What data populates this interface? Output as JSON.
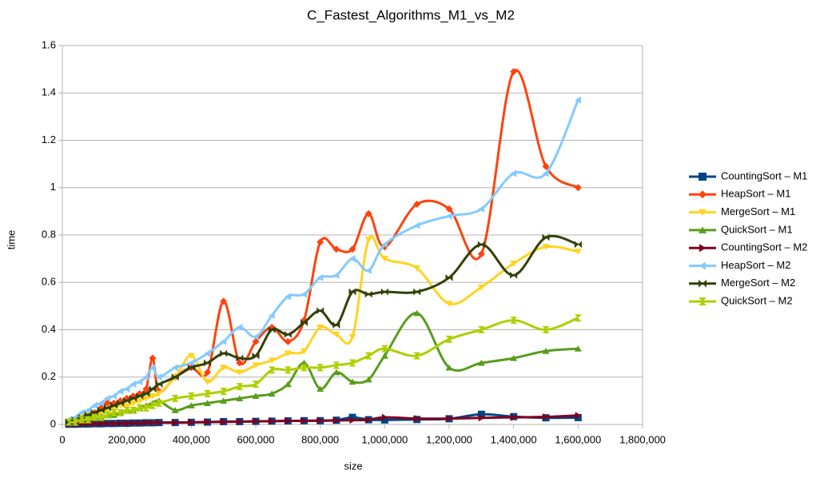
{
  "chart_data": {
    "type": "line",
    "title": "C_Fastest_Algorithms_M1_vs_M2",
    "x_label": "size",
    "y_label": "time",
    "smooth": true,
    "grid": true,
    "legend": "right",
    "x": [
      20000,
      40000,
      60000,
      80000,
      100000,
      120000,
      140000,
      160000,
      180000,
      200000,
      220000,
      240000,
      260000,
      280000,
      300000,
      350000,
      400000,
      450000,
      500000,
      550000,
      600000,
      650000,
      700000,
      750000,
      800000,
      850000,
      900000,
      950000,
      1000000,
      1100000,
      1200000,
      1300000,
      1400000,
      1500000,
      1600000
    ],
    "xlim": [
      0,
      1800000
    ],
    "xticks": [
      {
        "value": 0,
        "label": "0"
      },
      {
        "value": 200000,
        "label": "200,000"
      },
      {
        "value": 400000,
        "label": "400,000"
      },
      {
        "value": 600000,
        "label": "600,000"
      },
      {
        "value": 800000,
        "label": "800,000"
      },
      {
        "value": 1000000,
        "label": "1,000,000"
      },
      {
        "value": 1200000,
        "label": "1,200,000"
      },
      {
        "value": 1400000,
        "label": "1,400,000"
      },
      {
        "value": 1600000,
        "label": "1,600,000"
      },
      {
        "value": 1800000,
        "label": "1,800,000"
      }
    ],
    "ylim": [
      0,
      1.6
    ],
    "yticks": [
      0,
      0.2,
      0.4,
      0.6,
      0.8,
      1,
      1.2,
      1.4,
      1.6
    ],
    "series": [
      {
        "name": "CountingSort – M1",
        "color": "#004586",
        "marker": "square",
        "values": [
          0.001,
          0.001,
          0.002,
          0.002,
          0.003,
          0.003,
          0.004,
          0.004,
          0.005,
          0.005,
          0.006,
          0.006,
          0.007,
          0.007,
          0.008,
          0.008,
          0.009,
          0.01,
          0.012,
          0.012,
          0.013,
          0.014,
          0.015,
          0.016,
          0.016,
          0.018,
          0.03,
          0.02,
          0.019,
          0.021,
          0.024,
          0.043,
          0.033,
          0.028,
          0.029
        ]
      },
      {
        "name": "HeapSort – M1",
        "color": "#ff420e",
        "marker": "diamond",
        "values": [
          0.01,
          0.02,
          0.03,
          0.05,
          0.05,
          0.07,
          0.09,
          0.09,
          0.1,
          0.11,
          0.12,
          0.13,
          0.15,
          0.28,
          0.14,
          0.2,
          0.24,
          0.22,
          0.52,
          0.26,
          0.35,
          0.41,
          0.35,
          0.44,
          0.77,
          0.74,
          0.74,
          0.89,
          0.75,
          0.93,
          0.91,
          0.72,
          1.49,
          1.09,
          1.0
        ]
      },
      {
        "name": "MergeSort – M1",
        "color": "#ffd320",
        "marker": "triangle-down",
        "values": [
          0.01,
          0.02,
          0.03,
          0.04,
          0.04,
          0.05,
          0.06,
          0.07,
          0.08,
          0.08,
          0.09,
          0.1,
          0.11,
          0.12,
          0.13,
          0.2,
          0.29,
          0.18,
          0.24,
          0.22,
          0.25,
          0.27,
          0.3,
          0.31,
          0.41,
          0.38,
          0.37,
          0.78,
          0.7,
          0.66,
          0.51,
          0.58,
          0.68,
          0.75,
          0.73
        ]
      },
      {
        "name": "QuickSort – M1",
        "color": "#579d1c",
        "marker": "triangle-up",
        "values": [
          0.01,
          0.01,
          0.02,
          0.02,
          0.03,
          0.03,
          0.04,
          0.04,
          0.05,
          0.06,
          0.06,
          0.07,
          0.08,
          0.09,
          0.1,
          0.06,
          0.08,
          0.09,
          0.1,
          0.11,
          0.12,
          0.13,
          0.17,
          0.26,
          0.15,
          0.22,
          0.18,
          0.19,
          0.29,
          0.47,
          0.24,
          0.26,
          0.28,
          0.31,
          0.32
        ]
      },
      {
        "name": "CountingSort – M2",
        "color": "#7e0021",
        "marker": "triangle-right",
        "values": [
          0.001,
          0.001,
          0.002,
          0.002,
          0.003,
          0.003,
          0.004,
          0.004,
          0.005,
          0.005,
          0.006,
          0.006,
          0.007,
          0.007,
          0.008,
          0.008,
          0.009,
          0.01,
          0.011,
          0.012,
          0.013,
          0.014,
          0.015,
          0.015,
          0.016,
          0.017,
          0.018,
          0.02,
          0.03,
          0.025,
          0.025,
          0.028,
          0.03,
          0.032,
          0.038
        ]
      },
      {
        "name": "HeapSort – M2",
        "color": "#83caff",
        "marker": "triangle-left",
        "values": [
          0.02,
          0.03,
          0.05,
          0.06,
          0.08,
          0.09,
          0.11,
          0.12,
          0.14,
          0.15,
          0.17,
          0.18,
          0.2,
          0.24,
          0.2,
          0.24,
          0.26,
          0.3,
          0.35,
          0.41,
          0.37,
          0.46,
          0.54,
          0.55,
          0.62,
          0.63,
          0.7,
          0.65,
          0.76,
          0.84,
          0.88,
          0.91,
          1.06,
          1.06,
          1.37
        ]
      },
      {
        "name": "MergeSort – M2",
        "color": "#314004",
        "marker": "bowtie",
        "values": [
          0.01,
          0.02,
          0.03,
          0.04,
          0.05,
          0.06,
          0.07,
          0.08,
          0.09,
          0.1,
          0.11,
          0.12,
          0.13,
          0.15,
          0.17,
          0.2,
          0.24,
          0.26,
          0.3,
          0.28,
          0.29,
          0.4,
          0.38,
          0.43,
          0.48,
          0.42,
          0.56,
          0.55,
          0.56,
          0.56,
          0.62,
          0.76,
          0.63,
          0.79,
          0.76
        ]
      },
      {
        "name": "QuickSort – M2",
        "color": "#aecf00",
        "marker": "hourglass",
        "values": [
          0.01,
          0.01,
          0.02,
          0.02,
          0.03,
          0.03,
          0.04,
          0.05,
          0.05,
          0.06,
          0.06,
          0.07,
          0.07,
          0.08,
          0.09,
          0.11,
          0.12,
          0.13,
          0.14,
          0.16,
          0.17,
          0.23,
          0.23,
          0.24,
          0.24,
          0.25,
          0.26,
          0.29,
          0.32,
          0.29,
          0.36,
          0.4,
          0.44,
          0.4,
          0.45
        ]
      }
    ]
  }
}
